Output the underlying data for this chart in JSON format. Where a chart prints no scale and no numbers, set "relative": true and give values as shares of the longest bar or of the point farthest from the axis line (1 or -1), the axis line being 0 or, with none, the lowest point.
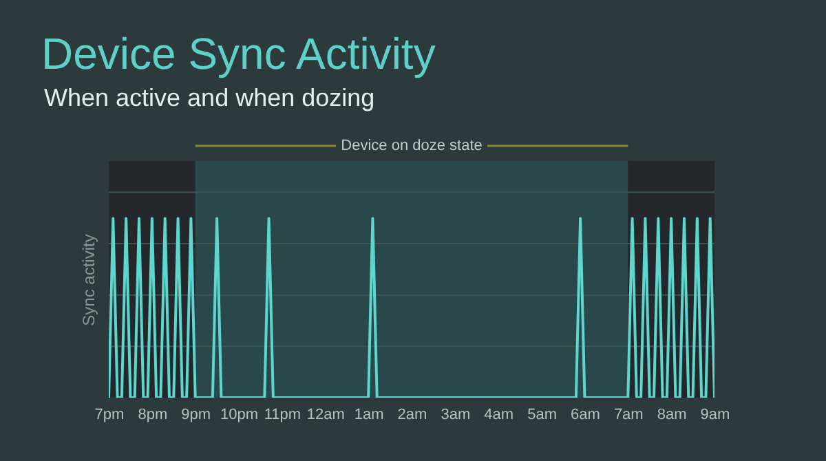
{
  "chart_data": {
    "type": "line",
    "title": "Device Sync Activity",
    "subtitle": "When active and when dozing",
    "ylabel": "Sync activity",
    "relative": true,
    "grid": true,
    "marker": "none",
    "line_style": "solid",
    "categories": [
      "7pm",
      null,
      null,
      null,
      null,
      null,
      null,
      null,
      null,
      null,
      "8pm",
      null,
      null,
      null,
      null,
      null,
      null,
      null,
      null,
      null,
      "9pm",
      null,
      null,
      null,
      null,
      null,
      null,
      null,
      null,
      null,
      "10pm",
      null,
      null,
      null,
      null,
      null,
      null,
      null,
      null,
      null,
      "11pm",
      null,
      null,
      null,
      null,
      null,
      null,
      null,
      null,
      null,
      "12am",
      null,
      null,
      null,
      null,
      null,
      null,
      null,
      null,
      null,
      "1am",
      null,
      null,
      null,
      null,
      null,
      null,
      null,
      null,
      null,
      "2am",
      null,
      null,
      null,
      null,
      null,
      null,
      null,
      null,
      null,
      "3am",
      null,
      null,
      null,
      null,
      null,
      null,
      null,
      null,
      null,
      "4am",
      null,
      null,
      null,
      null,
      null,
      null,
      null,
      null,
      null,
      "5am",
      null,
      null,
      null,
      null,
      null,
      null,
      null,
      null,
      null,
      "6am",
      null,
      null,
      null,
      null,
      null,
      null,
      null,
      null,
      null,
      "7am",
      null,
      null,
      null,
      null,
      null,
      null,
      null,
      null,
      null,
      "8am",
      null,
      null,
      null,
      null,
      null,
      null,
      null,
      null,
      null,
      "9am"
    ],
    "series": [
      {
        "color": "#5cd6cf",
        "values": [
          0,
          1,
          0,
          0,
          1,
          0,
          0,
          1,
          0,
          0,
          1,
          0,
          0,
          1,
          0,
          0,
          1,
          0,
          0,
          1,
          0,
          0,
          0,
          0,
          0,
          1,
          0,
          0,
          0,
          0,
          0,
          0,
          0,
          0,
          0,
          0,
          0,
          1,
          0,
          0,
          0,
          0,
          0,
          0,
          0,
          0,
          0,
          0,
          0,
          0,
          0,
          0,
          0,
          0,
          0,
          0,
          0,
          0,
          0,
          0,
          0,
          1,
          0,
          0,
          0,
          0,
          0,
          0,
          0,
          0,
          0,
          0,
          0,
          0,
          0,
          0,
          0,
          0,
          0,
          0,
          0,
          0,
          0,
          0,
          0,
          0,
          0,
          0,
          0,
          0,
          0,
          0,
          0,
          0,
          0,
          0,
          0,
          0,
          0,
          0,
          0,
          0,
          0,
          0,
          0,
          0,
          0,
          0,
          0,
          1,
          0,
          0,
          0,
          0,
          0,
          0,
          0,
          0,
          0,
          0,
          0,
          1,
          0,
          0,
          1,
          0,
          0,
          1,
          0,
          0,
          1,
          0,
          0,
          1,
          0,
          0,
          1,
          0,
          0,
          1,
          0
        ]
      }
    ],
    "bands": [
      {
        "axis": "x",
        "from": "7pm",
        "to": "9pm",
        "color": "#24282a"
      },
      {
        "axis": "x",
        "from": "9pm",
        "to": "7am",
        "color": "#2a4749",
        "label": "Device on doze state"
      },
      {
        "axis": "x",
        "from": "7am",
        "to": "9am",
        "color": "#24282a"
      }
    ]
  }
}
